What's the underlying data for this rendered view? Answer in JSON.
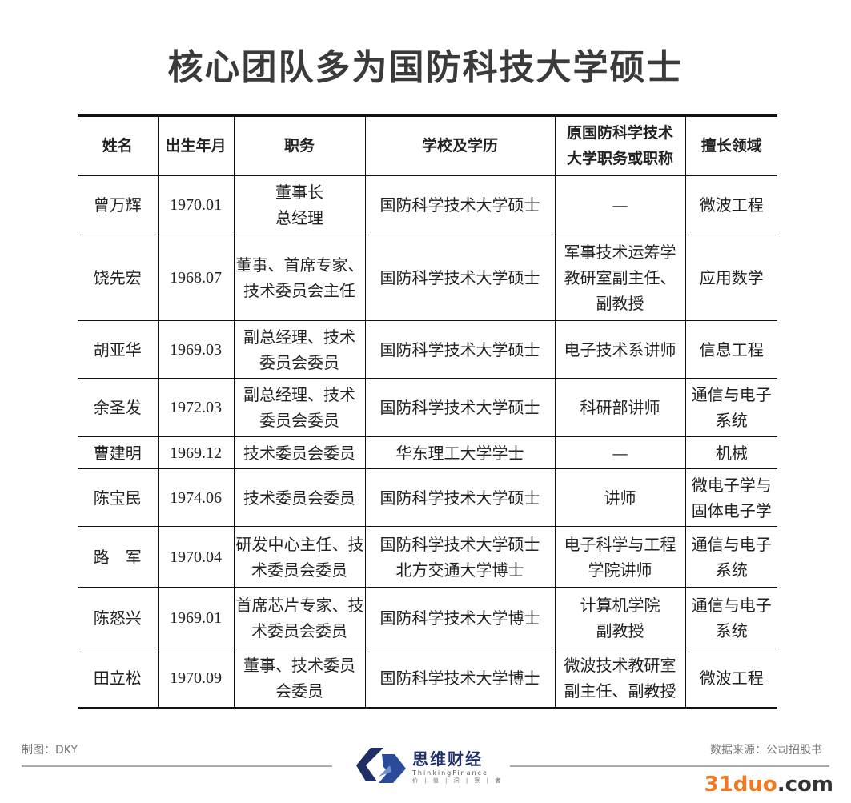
{
  "title": "核心团队多为国防科技大学硕士",
  "table": {
    "headers": [
      [
        "姓名"
      ],
      [
        "出生年月"
      ],
      [
        "职务"
      ],
      [
        "学校及学历"
      ],
      [
        "原国防科学技术",
        "大学职务或职称"
      ],
      [
        "擅长领域"
      ]
    ],
    "rows": [
      [
        [
          "曾万辉"
        ],
        [
          "1970.01"
        ],
        [
          "董事长",
          "总经理"
        ],
        [
          "国防科学技术大学硕士"
        ],
        [
          "—"
        ],
        [
          "微波工程"
        ]
      ],
      [
        [
          "饶先宏"
        ],
        [
          "1968.07"
        ],
        [
          "董事、首席专家、",
          "技术委员会主任"
        ],
        [
          "国防科学技术大学硕士"
        ],
        [
          "军事技术运筹学",
          "教研室副主任、",
          "副教授"
        ],
        [
          "应用数学"
        ]
      ],
      [
        [
          "胡亚华"
        ],
        [
          "1969.03"
        ],
        [
          "副总经理、技术",
          "委员会委员"
        ],
        [
          "国防科学技术大学硕士"
        ],
        [
          "电子技术系讲师"
        ],
        [
          "信息工程"
        ]
      ],
      [
        [
          "余圣发"
        ],
        [
          "1972.03"
        ],
        [
          "副总经理、技术",
          "委员会委员"
        ],
        [
          "国防科学技术大学硕士"
        ],
        [
          "科研部讲师"
        ],
        [
          "通信与电子",
          "系统"
        ]
      ],
      [
        [
          "曹建明"
        ],
        [
          "1969.12"
        ],
        [
          "技术委员会委员"
        ],
        [
          "华东理工大学学士"
        ],
        [
          "—"
        ],
        [
          "机械"
        ]
      ],
      [
        [
          "陈宝民"
        ],
        [
          "1974.06"
        ],
        [
          "技术委员会委员"
        ],
        [
          "国防科学技术大学硕士"
        ],
        [
          "讲师"
        ],
        [
          "微电子学与",
          "固体电子学"
        ]
      ],
      [
        [
          "路　军"
        ],
        [
          "1970.04"
        ],
        [
          "研发中心主任、技",
          "术委员会委员"
        ],
        [
          "国防科学技术大学硕士",
          "北方交通大学博士"
        ],
        [
          "电子科学与工程",
          "学院讲师"
        ],
        [
          "通信与电子",
          "系统"
        ]
      ],
      [
        [
          "陈怒兴"
        ],
        [
          "1969.01"
        ],
        [
          "首席芯片专家、技",
          "术委员会委员"
        ],
        [
          "国防科学技术大学博士"
        ],
        [
          "计算机学院",
          "副教授"
        ],
        [
          "通信与电子",
          "系统"
        ]
      ],
      [
        [
          "田立松"
        ],
        [
          "1970.09"
        ],
        [
          "董事、技术委员",
          "会委员"
        ],
        [
          "国防科学技术大学博士"
        ],
        [
          "微波技术教研室",
          "副主任、副教授"
        ],
        [
          "微波工程"
        ]
      ]
    ]
  },
  "footer": {
    "maker": "制图：DKY",
    "source": "数据来源：公司招股书",
    "logo_cn": "思维财经",
    "logo_en": "ThinkingFinance",
    "logo_slogan": "价 | 值 | 洞 | 察 | 者",
    "watermark_num": "31duo",
    "watermark_dom": ".com"
  },
  "colors": {
    "logo": "#1f2f66",
    "watermark": "#f07820"
  }
}
